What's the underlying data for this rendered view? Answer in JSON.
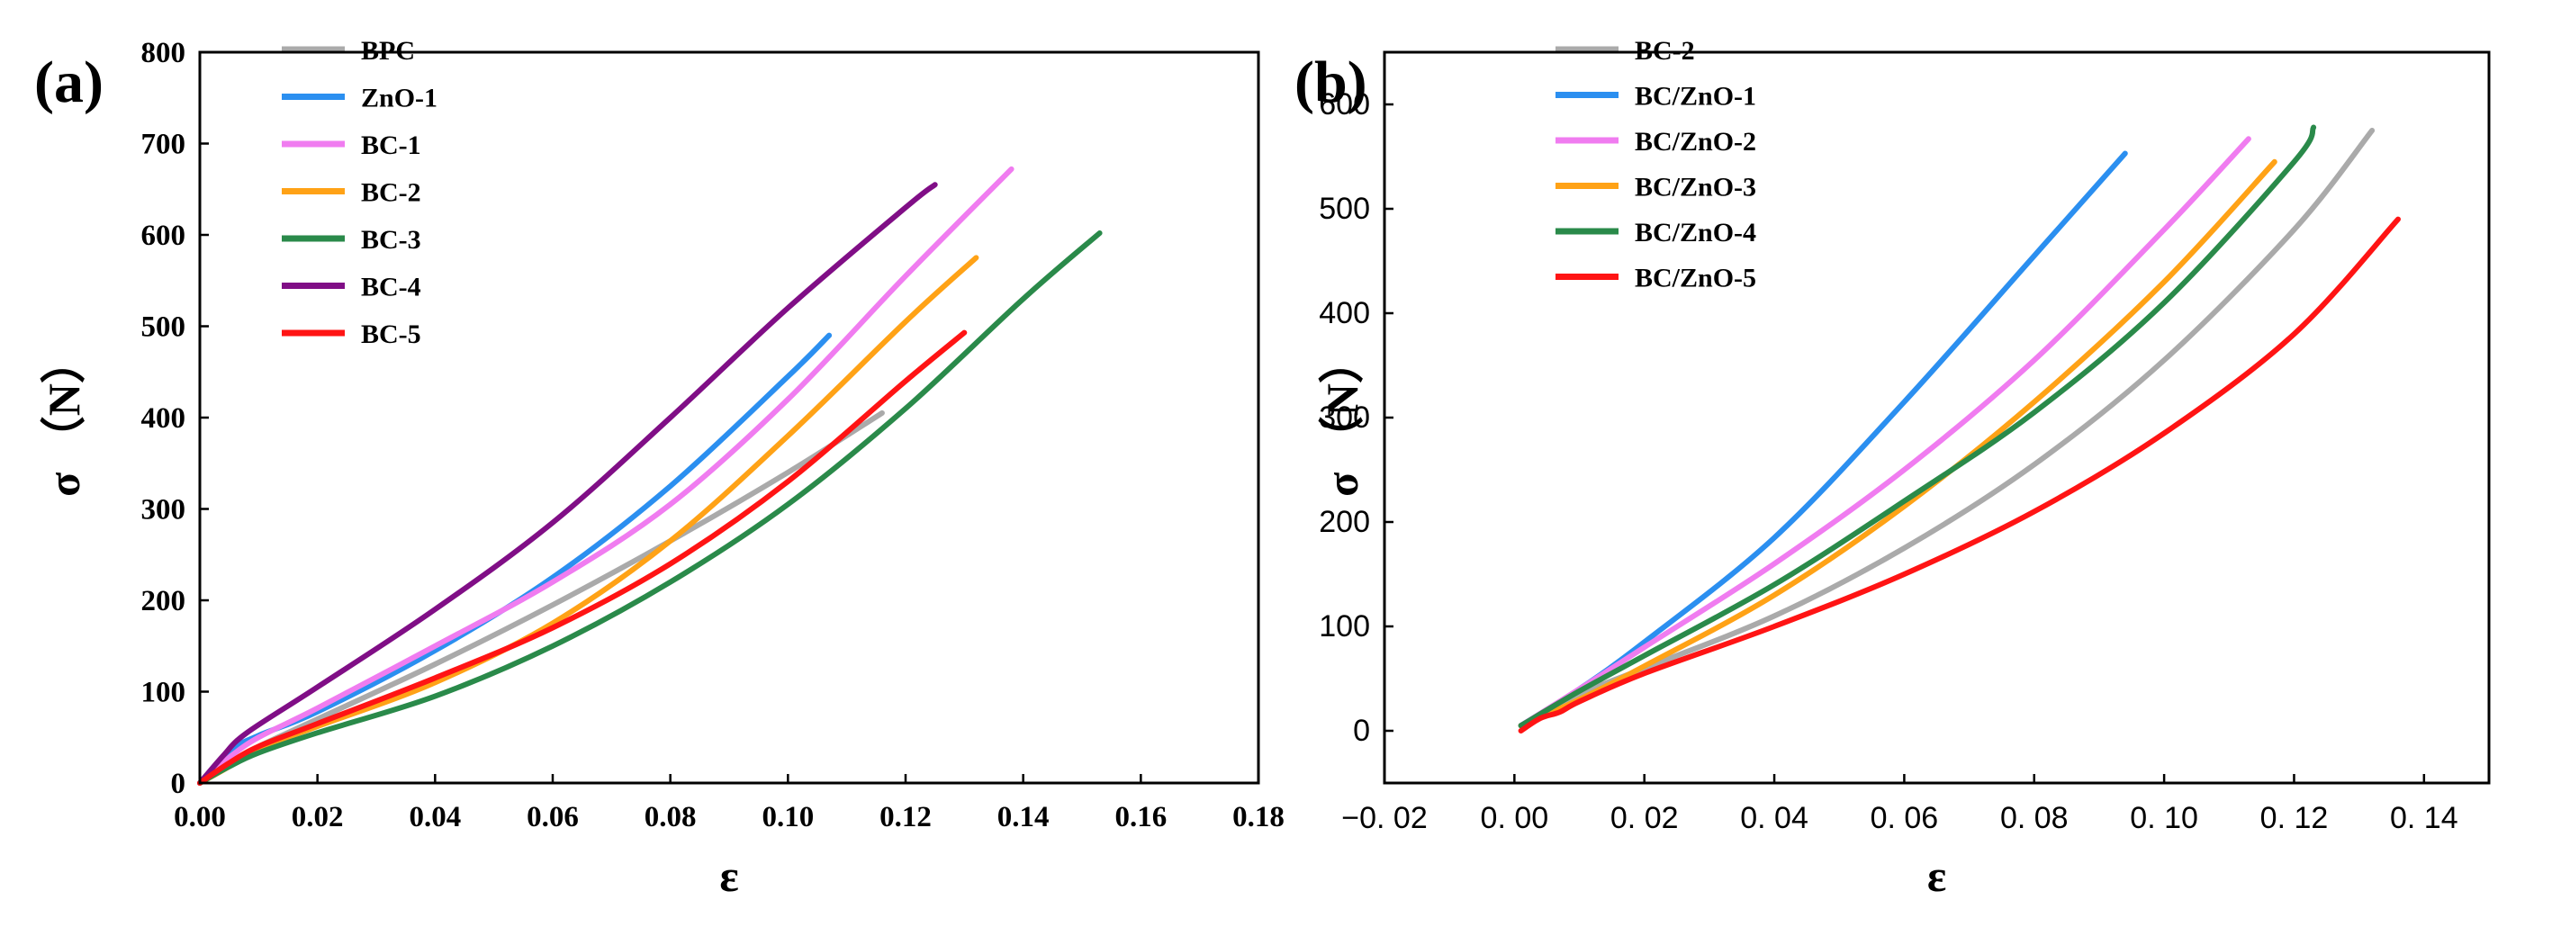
{
  "chart_data": [
    {
      "panel_label": "(a)",
      "type": "line",
      "xlabel": "ε",
      "ylabel": "σ （N）",
      "xlim": [
        0,
        0.18
      ],
      "ylim": [
        0,
        800
      ],
      "xticks": [
        0.0,
        0.02,
        0.04,
        0.06,
        0.08,
        0.1,
        0.12,
        0.14,
        0.16,
        0.18
      ],
      "xtick_labels": [
        "0.00",
        "0.02",
        "0.04",
        "0.06",
        "0.08",
        "0.10",
        "0.12",
        "0.14",
        "0.16",
        "0.18"
      ],
      "yticks": [
        0,
        100,
        200,
        300,
        400,
        500,
        600,
        700,
        800
      ],
      "ytick_labels": [
        "0",
        "100",
        "200",
        "300",
        "400",
        "500",
        "600",
        "700",
        "800"
      ],
      "legend": "top-left",
      "grid": false,
      "series": [
        {
          "name": "BPC",
          "color": "#aaaaaa",
          "x": [
            0,
            0.005,
            0.01,
            0.02,
            0.04,
            0.06,
            0.08,
            0.1,
            0.116
          ],
          "y": [
            0,
            22,
            40,
            70,
            130,
            195,
            265,
            340,
            405
          ]
        },
        {
          "name": "ZnO-1",
          "color": "#2b8ff0",
          "x": [
            0,
            0.005,
            0.01,
            0.02,
            0.04,
            0.06,
            0.08,
            0.1,
            0.107
          ],
          "y": [
            0,
            35,
            52,
            78,
            145,
            225,
            325,
            445,
            490
          ]
        },
        {
          "name": "BC-1",
          "color": "#f07cf0",
          "x": [
            0,
            0.005,
            0.01,
            0.02,
            0.04,
            0.06,
            0.08,
            0.1,
            0.12,
            0.138
          ],
          "y": [
            0,
            28,
            50,
            82,
            150,
            220,
            305,
            420,
            555,
            672
          ]
        },
        {
          "name": "BC-2",
          "color": "#ffa216",
          "x": [
            0,
            0.005,
            0.01,
            0.02,
            0.04,
            0.06,
            0.08,
            0.1,
            0.12,
            0.132
          ],
          "y": [
            0,
            18,
            38,
            62,
            110,
            175,
            265,
            380,
            505,
            575
          ]
        },
        {
          "name": "BC-3",
          "color": "#2a8a4a",
          "x": [
            0,
            0.005,
            0.01,
            0.02,
            0.04,
            0.06,
            0.08,
            0.1,
            0.12,
            0.14,
            0.153
          ],
          "y": [
            0,
            18,
            33,
            55,
            95,
            150,
            220,
            305,
            410,
            530,
            602
          ]
        },
        {
          "name": "BC-4",
          "color": "#800e86",
          "x": [
            0,
            0.004,
            0.008,
            0.02,
            0.04,
            0.06,
            0.08,
            0.1,
            0.12,
            0.125
          ],
          "y": [
            0,
            30,
            55,
            105,
            190,
            285,
            400,
            520,
            630,
            655
          ]
        },
        {
          "name": "BC-5",
          "color": "#ff1414",
          "x": [
            0,
            0.005,
            0.01,
            0.02,
            0.04,
            0.06,
            0.08,
            0.1,
            0.12,
            0.13
          ],
          "y": [
            0,
            22,
            40,
            65,
            115,
            170,
            240,
            330,
            440,
            493
          ]
        }
      ]
    },
    {
      "panel_label": "(b)",
      "type": "line",
      "xlabel": "ε",
      "ylabel": "σ （N）",
      "xlim": [
        -0.02,
        0.15
      ],
      "ylim": [
        -50,
        650
      ],
      "xticks": [
        -0.02,
        0.0,
        0.02,
        0.04,
        0.06,
        0.08,
        0.1,
        0.12,
        0.14
      ],
      "xtick_labels": [
        "−0. 02",
        "0. 00",
        "0. 02",
        "0. 04",
        "0. 06",
        "0. 08",
        "0. 10",
        "0. 12",
        "0. 14"
      ],
      "yticks": [
        0,
        100,
        200,
        300,
        400,
        500,
        600
      ],
      "ytick_labels": [
        "0",
        "100",
        "200",
        "300",
        "400",
        "500",
        "600"
      ],
      "legend": "top-left",
      "grid": false,
      "series": [
        {
          "name": "BC-2",
          "color": "#aaaaaa",
          "x": [
            0.001,
            0.01,
            0.02,
            0.04,
            0.06,
            0.08,
            0.1,
            0.12,
            0.132
          ],
          "y": [
            5,
            35,
            60,
            110,
            175,
            255,
            355,
            480,
            575
          ]
        },
        {
          "name": "BC/ZnO-1",
          "color": "#2b8ff0",
          "x": [
            0.001,
            0.01,
            0.02,
            0.04,
            0.06,
            0.08,
            0.094
          ],
          "y": [
            5,
            40,
            85,
            185,
            315,
            455,
            553
          ]
        },
        {
          "name": "BC/ZnO-2",
          "color": "#f07cf0",
          "x": [
            0.001,
            0.01,
            0.02,
            0.04,
            0.06,
            0.08,
            0.1,
            0.113
          ],
          "y": [
            5,
            40,
            80,
            160,
            250,
            355,
            480,
            567
          ]
        },
        {
          "name": "BC/ZnO-3",
          "color": "#ffa216",
          "x": [
            0.001,
            0.01,
            0.02,
            0.04,
            0.06,
            0.08,
            0.1,
            0.117
          ],
          "y": [
            5,
            30,
            62,
            130,
            215,
            315,
            430,
            545
          ]
        },
        {
          "name": "BC/ZnO-4",
          "color": "#2a8a4a",
          "x": [
            0.001,
            0.01,
            0.02,
            0.04,
            0.06,
            0.08,
            0.1,
            0.12,
            0.123
          ],
          "y": [
            5,
            38,
            72,
            140,
            220,
            305,
            410,
            545,
            578
          ]
        },
        {
          "name": "BC/ZnO-5",
          "color": "#ff1414",
          "x": [
            0.001,
            0.004,
            0.007,
            0.01,
            0.02,
            0.04,
            0.06,
            0.08,
            0.1,
            0.12,
            0.136
          ],
          "y": [
            0,
            12,
            18,
            28,
            55,
            100,
            150,
            210,
            285,
            380,
            490
          ]
        }
      ]
    }
  ]
}
